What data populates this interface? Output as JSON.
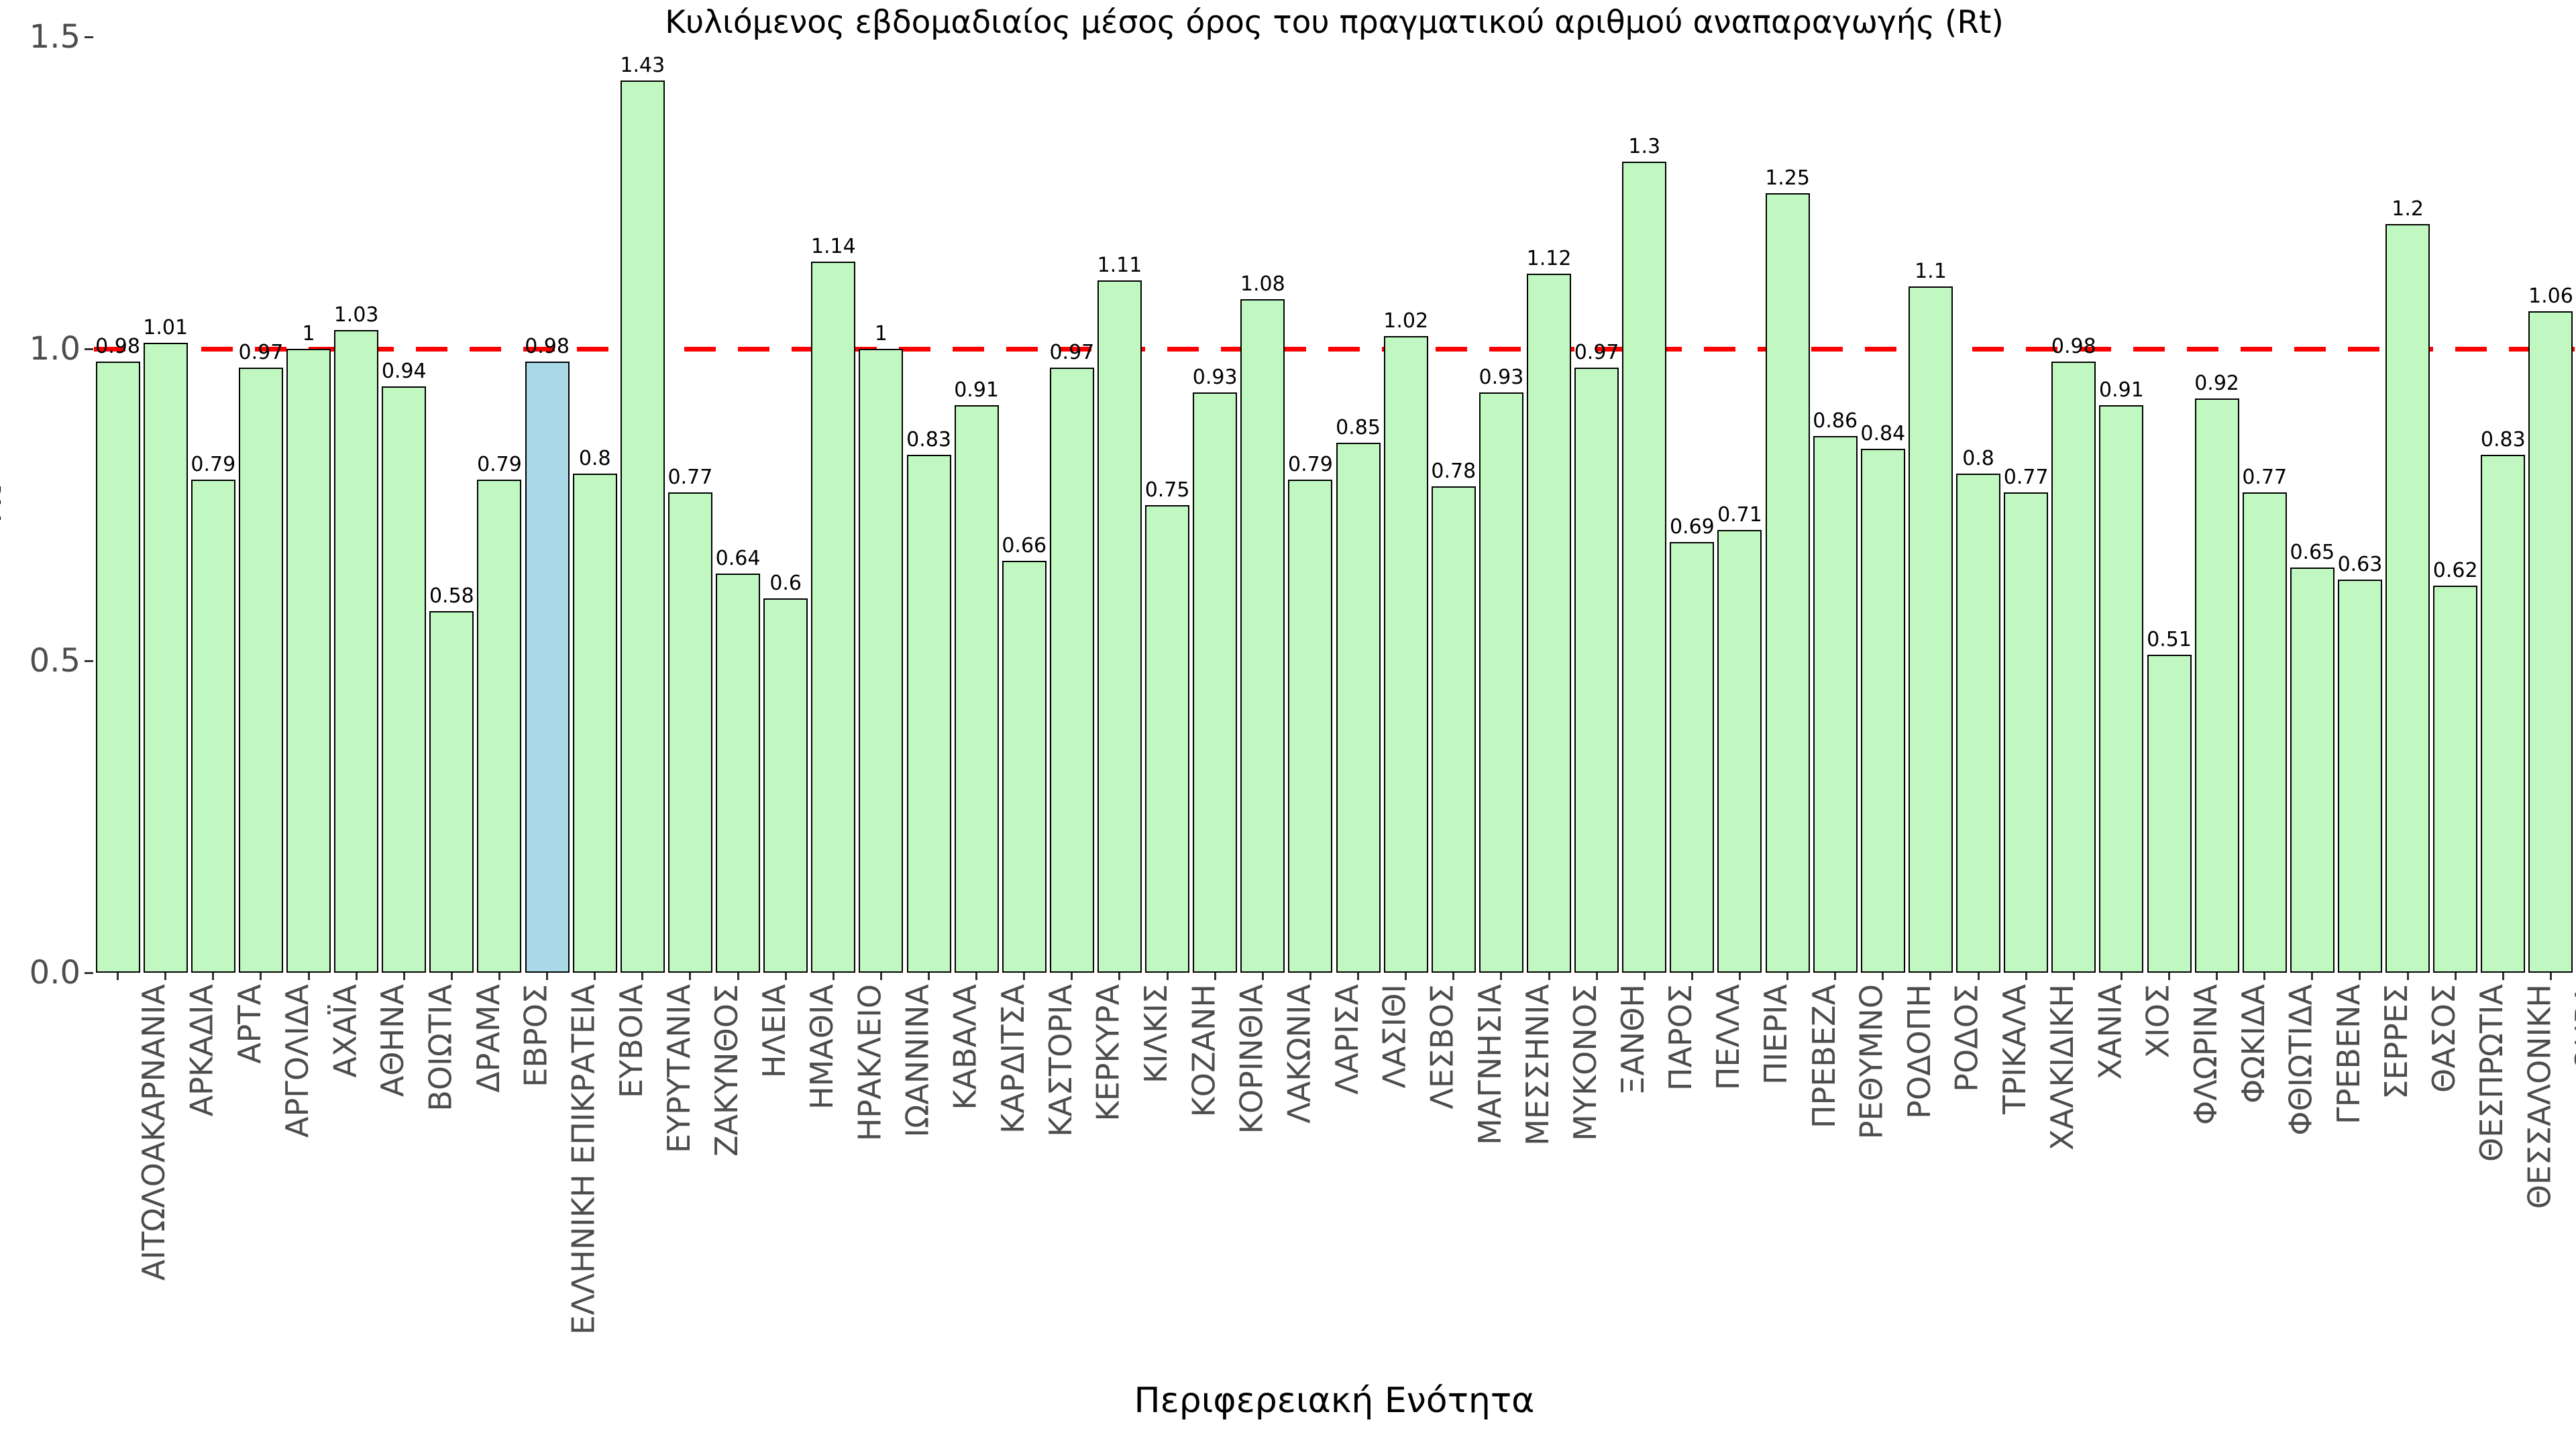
{
  "title": "Κυλιόμενος εβδομαδιαίος μέσος όρος του πραγματικού αριθμού αναπαραγωγής (Rt)",
  "y_axis": {
    "label": "Rt",
    "ticks": [
      "0.0",
      "0.5",
      "1.0",
      "1.5"
    ],
    "tick_values": [
      0.0,
      0.5,
      1.0,
      1.5
    ],
    "range": [
      0.0,
      1.5
    ]
  },
  "x_axis": {
    "label": "Περιφερειακή Ενότητα"
  },
  "reference_line": {
    "value": 1.0,
    "color": "#fe0000",
    "style": "dashed"
  },
  "colors": {
    "bar_fill": "#c1f8c1",
    "highlight_fill": "#a9d8e7",
    "bar_border": "#000000",
    "tick_text": "#4d4d4d",
    "text": "#000000"
  },
  "chart_data": {
    "type": "bar",
    "title": "Κυλιόμενος εβδομαδιαίος μέσος όρος του πραγματικού αριθμού αναπαραγωγής (Rt)",
    "xlabel": "Περιφερειακή Ενότητα",
    "ylabel": "Rt",
    "ylim": [
      0,
      1.5
    ],
    "grid": false,
    "legend_position": null,
    "reference_line_y": 1.0,
    "highlight_category": "ΕΛΛΗΝΙΚΗ ΕΠΙΚΡΑΤΕΙΑ",
    "highlight_index": 9,
    "categories": [
      "ΑΙΤΩΛΟΑΚΑΡΝΑΝΙΑ",
      "ΑΡΚΑΔΙΑ",
      "ΑΡΤΑ",
      "ΑΡΓΟΛΙΔΑ",
      "ΑΧΑΪΑ",
      "ΑΘΗΝΑ",
      "ΒΟΙΩΤΙΑ",
      "ΔΡΑΜΑ",
      "ΕΒΡΟΣ",
      "ΕΛΛΗΝΙΚΗ ΕΠΙΚΡΑΤΕΙΑ",
      "ΕΥΒΟΙΑ",
      "ΕΥΡΥΤΑΝΙΑ",
      "ΖΑΚΥΝΘΟΣ",
      "ΗΛΕΙΑ",
      "ΗΜΑΘΙΑ",
      "ΗΡΑΚΛΕΙΟ",
      "ΙΩΑΝΝΙΝΑ",
      "ΚΑΒΑΛΑ",
      "ΚΑΡΔΙΤΣΑ",
      "ΚΑΣΤΟΡΙΑ",
      "ΚΕΡΚΥΡΑ",
      "ΚΙΛΚΙΣ",
      "ΚΟΖΑΝΗ",
      "ΚΟΡΙΝΘΙΑ",
      "ΛΑΚΩΝΙΑ",
      "ΛΑΡΙΣΑ",
      "ΛΑΣΙΘΙ",
      "ΛΕΣΒΟΣ",
      "ΜΑΓΝΗΣΙΑ",
      "ΜΕΣΣΗΝΙΑ",
      "ΜΥΚΟΝΟΣ",
      "ΞΑΝΘΗ",
      "ΠΑΡΟΣ",
      "ΠΕΛΛΑ",
      "ΠΙΕΡΙΑ",
      "ΠΡΕΒΕΖΑ",
      "ΡΕΘΥΜΝΟ",
      "ΡΟΔΟΠΗ",
      "ΡΟΔΟΣ",
      "ΤΡΙΚΑΛΑ",
      "ΧΑΛΚΙΔΙΚΗ",
      "ΧΑΝΙΑ",
      "ΧΙΟΣ",
      "ΦΛΩΡΙΝΑ",
      "ΦΩΚΙΔΑ",
      "ΦΘΙΩΤΙΔΑ",
      "ΓΡΕΒΕΝΑ",
      "ΣΕΡΡΕΣ",
      "ΘΑΣΟΣ",
      "ΘΕΣΠΡΩΤΙΑ",
      "ΘΕΣΣΑΛΟΝΙΚΗ",
      "ΘΗΡΑ"
    ],
    "values": [
      0.98,
      1.01,
      0.79,
      0.97,
      1,
      1.03,
      0.94,
      0.58,
      0.79,
      0.98,
      0.8,
      1.43,
      0.77,
      0.64,
      0.6,
      1.14,
      1,
      0.83,
      0.91,
      0.66,
      0.97,
      1.11,
      0.75,
      0.93,
      1.08,
      0.79,
      0.85,
      1.02,
      0.78,
      0.93,
      1.12,
      0.97,
      1.3,
      0.69,
      0.71,
      1.25,
      0.86,
      0.84,
      1.1,
      0.8,
      0.77,
      0.98,
      0.91,
      0.51,
      0.92,
      0.77,
      0.65,
      0.63,
      1.2,
      0.62,
      0.83,
      1.06
    ],
    "value_labels": [
      "0.98",
      "1.01",
      "0.79",
      "0.97",
      "1",
      "1.03",
      "0.94",
      "0.58",
      "0.79",
      "0.98",
      "0.8",
      "1.43",
      "0.77",
      "0.64",
      "0.6",
      "1.14",
      "1",
      "0.83",
      "0.91",
      "0.66",
      "0.97",
      "1.11",
      "0.75",
      "0.93",
      "1.08",
      "0.79",
      "0.85",
      "1.02",
      "0.78",
      "0.93",
      "1.12",
      "0.97",
      "1.3",
      "0.69",
      "0.71",
      "1.25",
      "0.86",
      "0.84",
      "1.1",
      "0.8",
      "0.77",
      "0.98",
      "0.91",
      "0.51",
      "0.92",
      "0.77",
      "0.65",
      "0.63",
      "1.2",
      "0.62",
      "0.83",
      "1.06"
    ]
  }
}
